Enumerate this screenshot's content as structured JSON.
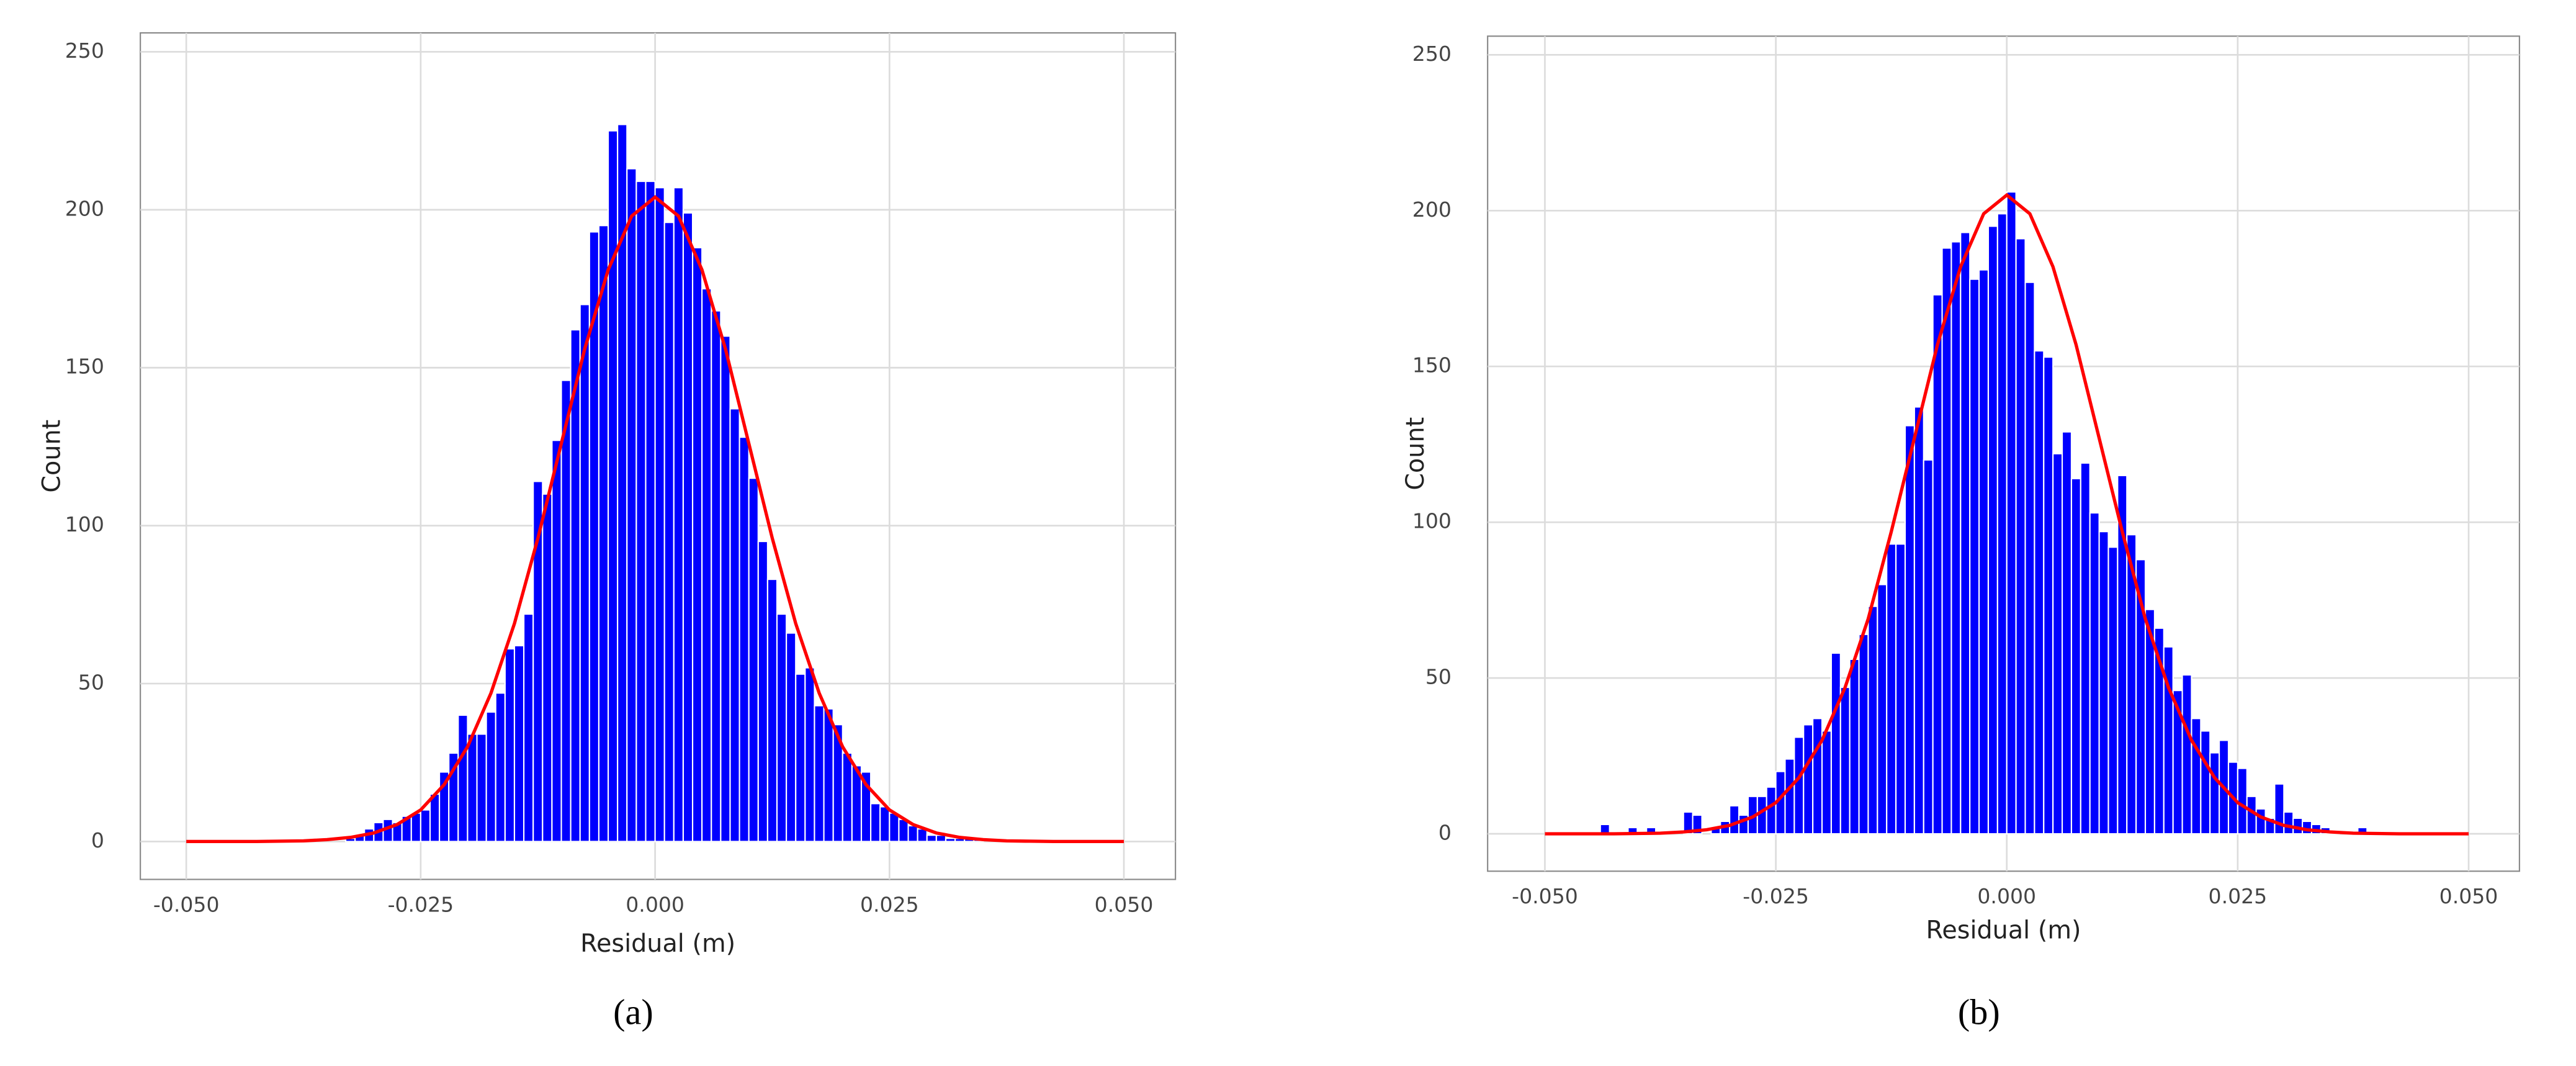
{
  "chart_data": [
    {
      "type": "histogram",
      "caption": "(a)",
      "xlabel": "Residual (m)",
      "ylabel": "Count",
      "bins": [
        -0.034,
        -0.033,
        -0.032,
        -0.031,
        -0.03,
        -0.029,
        -0.028,
        -0.027,
        -0.026,
        -0.025,
        -0.024,
        -0.023,
        -0.022,
        -0.021,
        -0.02,
        -0.019,
        -0.018,
        -0.017,
        -0.016,
        -0.015,
        -0.014,
        -0.013,
        -0.012,
        -0.011,
        -0.01,
        -0.009,
        -0.008,
        -0.007,
        -0.006,
        -0.005,
        -0.004,
        -0.003,
        -0.002,
        -0.001,
        0.0,
        0.001,
        0.002,
        0.003,
        0.004,
        0.005,
        0.006,
        0.007,
        0.008,
        0.009,
        0.01,
        0.011,
        0.012,
        0.013,
        0.014,
        0.015,
        0.016,
        0.017,
        0.018,
        0.019,
        0.02,
        0.021,
        0.022,
        0.023,
        0.024,
        0.025,
        0.026,
        0.027,
        0.028,
        0.029,
        0.03,
        0.031,
        0.032,
        0.033,
        0.034,
        0.035,
        0.036
      ],
      "values": [
        0,
        1,
        2,
        4,
        6,
        7,
        6,
        8,
        9,
        10,
        15,
        22,
        28,
        40,
        34,
        34,
        41,
        47,
        61,
        62,
        72,
        114,
        110,
        127,
        146,
        162,
        170,
        193,
        195,
        225,
        227,
        213,
        209,
        209,
        207,
        196,
        207,
        199,
        188,
        175,
        168,
        160,
        137,
        128,
        115,
        95,
        83,
        72,
        66,
        53,
        55,
        43,
        42,
        37,
        28,
        24,
        22,
        12,
        11,
        9,
        7,
        5,
        4,
        2,
        2,
        1,
        1,
        1,
        1,
        0
      ],
      "color": "#0000ff",
      "curve": {
        "color": "#ff0000",
        "x": [
          -0.05,
          -0.0475,
          -0.045,
          -0.0425,
          -0.04,
          -0.0375,
          -0.035,
          -0.0325,
          -0.03,
          -0.0275,
          -0.025,
          -0.0225,
          -0.02,
          -0.0175,
          -0.015,
          -0.0125,
          -0.01,
          -0.0075,
          -0.005,
          -0.0025,
          0,
          0.0025,
          0.005,
          0.0075,
          0.01,
          0.0125,
          0.015,
          0.0175,
          0.02,
          0.0225,
          0.025,
          0.0275,
          0.03,
          0.0325,
          0.035,
          0.0375,
          0.04,
          0.0425,
          0.045,
          0.0475,
          0.05
        ],
        "values": [
          0,
          0,
          0,
          0,
          0.1,
          0.2,
          0.6,
          1.3,
          2.7,
          5.4,
          10,
          18,
          30,
          47,
          69,
          96,
          126,
          156,
          181,
          198,
          204,
          198,
          181,
          156,
          126,
          96,
          69,
          47,
          30,
          18,
          10,
          5.4,
          2.7,
          1.3,
          0.6,
          0.2,
          0.1,
          0,
          0,
          0,
          0
        ]
      },
      "xlim": [
        -0.0549,
        0.0555
      ],
      "ylim": [
        -12,
        256
      ],
      "xticks": [
        {
          "value": -0.05,
          "label": "-0.050"
        },
        {
          "value": -0.025,
          "label": "-0.025"
        },
        {
          "value": 0,
          "label": "0.000"
        },
        {
          "value": 0.025,
          "label": "0.025"
        },
        {
          "value": 0.05,
          "label": "0.050"
        }
      ],
      "yticks": [
        0,
        50,
        100,
        150,
        200,
        250
      ],
      "grid": true
    },
    {
      "type": "histogram",
      "caption": "(b)",
      "xlabel": "Residual (m)",
      "ylabel": "Count",
      "bins": [
        -0.044,
        -0.043,
        -0.042,
        -0.041,
        -0.04,
        -0.039,
        -0.038,
        -0.037,
        -0.036,
        -0.035,
        -0.034,
        -0.033,
        -0.032,
        -0.031,
        -0.03,
        -0.029,
        -0.028,
        -0.027,
        -0.026,
        -0.025,
        -0.024,
        -0.023,
        -0.022,
        -0.021,
        -0.02,
        -0.019,
        -0.018,
        -0.017,
        -0.016,
        -0.015,
        -0.014,
        -0.013,
        -0.012,
        -0.011,
        -0.01,
        -0.009,
        -0.008,
        -0.007,
        -0.006,
        -0.005,
        -0.004,
        -0.003,
        -0.002,
        -0.001,
        0.0,
        0.001,
        0.002,
        0.003,
        0.004,
        0.005,
        0.006,
        0.007,
        0.008,
        0.009,
        0.01,
        0.011,
        0.012,
        0.013,
        0.014,
        0.015,
        0.016,
        0.017,
        0.018,
        0.019,
        0.02,
        0.021,
        0.022,
        0.023,
        0.024,
        0.025,
        0.026,
        0.027,
        0.028,
        0.029,
        0.03,
        0.031,
        0.032,
        0.033,
        0.034,
        0.035,
        0.036,
        0.037,
        0.038,
        0.039
      ],
      "values": [
        3,
        0,
        0,
        2,
        0,
        2,
        0,
        0,
        0,
        7,
        6,
        0,
        2,
        4,
        9,
        6,
        12,
        12,
        15,
        20,
        24,
        31,
        35,
        37,
        33,
        58,
        47,
        56,
        64,
        73,
        80,
        93,
        93,
        131,
        137,
        120,
        173,
        188,
        190,
        193,
        178,
        181,
        195,
        199,
        206,
        191,
        177,
        155,
        153,
        122,
        129,
        114,
        119,
        103,
        97,
        92,
        115,
        96,
        88,
        72,
        66,
        60,
        46,
        51,
        37,
        33,
        26,
        30,
        23,
        21,
        12,
        8,
        5,
        16,
        7,
        5,
        4,
        3,
        2,
        1,
        0,
        0,
        2
      ],
      "color": "#0000ff",
      "curve": {
        "color": "#ff0000",
        "x": [
          -0.05,
          -0.0475,
          -0.045,
          -0.0425,
          -0.04,
          -0.0375,
          -0.035,
          -0.0325,
          -0.03,
          -0.0275,
          -0.025,
          -0.0225,
          -0.02,
          -0.0175,
          -0.015,
          -0.0125,
          -0.01,
          -0.0075,
          -0.005,
          -0.0025,
          0,
          0.0025,
          0.005,
          0.0075,
          0.01,
          0.0125,
          0.015,
          0.0175,
          0.02,
          0.0225,
          0.025,
          0.0275,
          0.03,
          0.0325,
          0.035,
          0.0375,
          0.04,
          0.0425,
          0.045,
          0.0475,
          0.05
        ],
        "values": [
          0,
          0,
          0,
          0,
          0.1,
          0.2,
          0.6,
          1.3,
          2.7,
          5.4,
          10,
          18,
          30,
          47,
          69,
          97,
          127,
          157,
          182,
          199,
          205,
          199,
          182,
          157,
          127,
          97,
          69,
          47,
          30,
          18,
          10,
          5.4,
          2.7,
          1.3,
          0.6,
          0.2,
          0.1,
          0,
          0,
          0,
          0
        ]
      },
      "xlim": [
        -0.0562,
        0.0555
      ],
      "ylim": [
        -12,
        256
      ],
      "xticks": [
        {
          "value": -0.05,
          "label": "-0.050"
        },
        {
          "value": -0.025,
          "label": "-0.025"
        },
        {
          "value": 0,
          "label": "0.000"
        },
        {
          "value": 0.025,
          "label": "0.025"
        },
        {
          "value": 0.05,
          "label": "0.050"
        }
      ],
      "yticks": [
        0,
        50,
        100,
        150,
        200,
        250
      ],
      "grid": true
    }
  ]
}
